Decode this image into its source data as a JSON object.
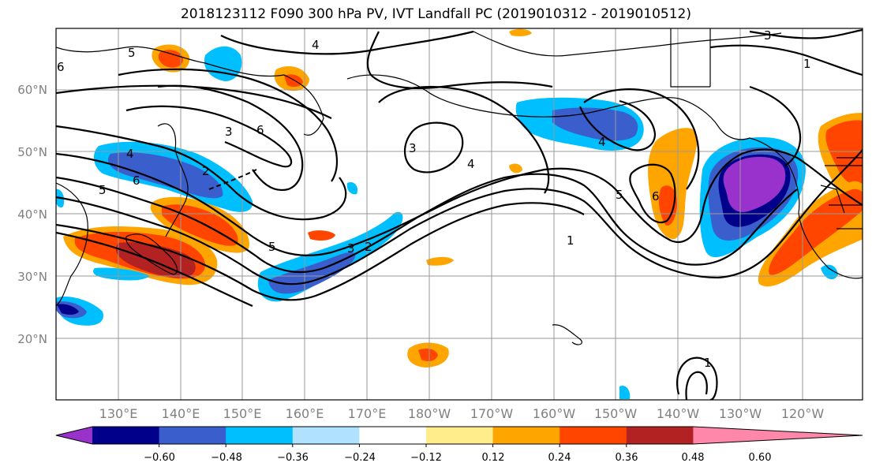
{
  "title": "2018123112 F090 300 hPa PV, IVT Landfall PC (2019010312 - 2019010512)",
  "map": {
    "lat_labels": [
      "60°N",
      "50°N",
      "40°N",
      "30°N",
      "20°N"
    ],
    "lon_labels": [
      "130°E",
      "140°E",
      "150°E",
      "160°E",
      "170°E",
      "180°W",
      "170°W",
      "160°W",
      "150°W",
      "140°W",
      "130°W",
      "120°W"
    ],
    "contour_labels": [
      "1",
      "1",
      "2",
      "3",
      "3",
      "3",
      "4",
      "4",
      "4",
      "4",
      "5",
      "5",
      "5",
      "5",
      "6",
      "6",
      "6",
      "6",
      "3",
      "2",
      "1"
    ]
  },
  "colorbar": {
    "colors": [
      "#9932cc",
      "#00008b",
      "#3a5fcd",
      "#00bfff",
      "#b0e2ff",
      "#ffffff",
      "#ffec8b",
      "#ffa500",
      "#ff4500",
      "#b22222",
      "#ff88aa"
    ],
    "ticks": [
      "−0.60",
      "−0.48",
      "−0.36",
      "−0.24",
      "−0.12",
      "0.12",
      "0.24",
      "0.36",
      "0.48",
      "0.60"
    ]
  }
}
